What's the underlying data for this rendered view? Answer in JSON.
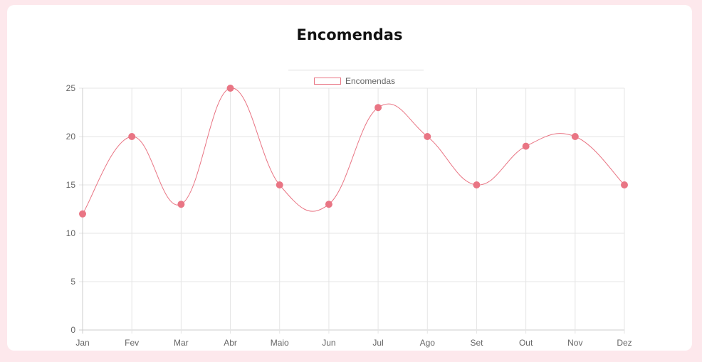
{
  "title": "Encomendas",
  "colors": {
    "page_bg": "#fde8ec",
    "card_bg": "#ffffff",
    "line": "#e97584",
    "point": "#e97584",
    "grid": "#e5e5e5"
  },
  "chart_data": {
    "type": "line",
    "title": "Encomendas",
    "categories": [
      "Jan",
      "Fev",
      "Mar",
      "Abr",
      "Maio",
      "Jun",
      "Jul",
      "Ago",
      "Set",
      "Out",
      "Nov",
      "Dez"
    ],
    "series": [
      {
        "name": "Encomendas",
        "values": [
          12,
          20,
          13,
          25,
          15,
          13,
          23,
          20,
          15,
          19,
          20,
          15
        ]
      }
    ],
    "ylim": [
      0,
      25
    ],
    "yticks": [
      0,
      5,
      10,
      15,
      20,
      25
    ],
    "grid": true,
    "legend": "top-center",
    "smooth": true
  }
}
